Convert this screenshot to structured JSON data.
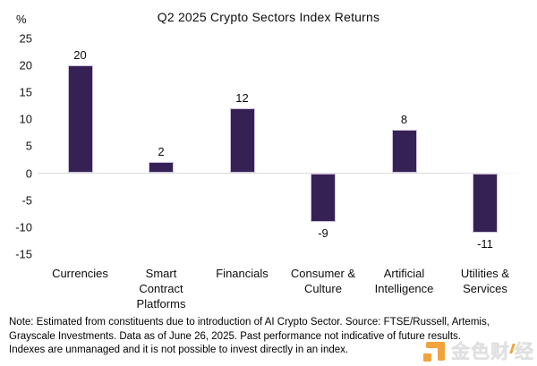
{
  "header": {
    "title": "Q2 2025 Crypto Sectors Index Returns",
    "y_unit": "%"
  },
  "chart_data": {
    "type": "bar",
    "title": "Q2 2025 Crypto Sectors Index Returns",
    "categories": [
      "Currencies",
      "Smart Contract Platforms",
      "Financials",
      "Consumer & Culture",
      "Artificial Intelligence",
      "Utilities & Services"
    ],
    "values": [
      20,
      2,
      12,
      -9,
      8,
      -11
    ],
    "data_labels": [
      "20",
      "2",
      "12",
      "-9",
      "8",
      "-11"
    ],
    "ylabel": "%",
    "ylim": [
      -15,
      25
    ],
    "yticks": [
      25,
      20,
      15,
      10,
      5,
      0,
      -5,
      -10,
      -15
    ],
    "grid": "zero-line-only",
    "legend": "none",
    "bar_color": "#362155"
  },
  "note": {
    "lines": [
      "Note: Estimated from constituents due to introduction of AI Crypto Sector. Source: FTSE/Russell, Artemis,",
      "Grayscale Investments. Data as of June 26, 2025. Past performance not indicative of future results.",
      "Indexes are unmanaged and it is not possible to invest directly in an index."
    ]
  },
  "watermark": {
    "name": "金色财经",
    "part1": "金色财",
    "part2": "经",
    "accent_color": "#f2a33c"
  }
}
